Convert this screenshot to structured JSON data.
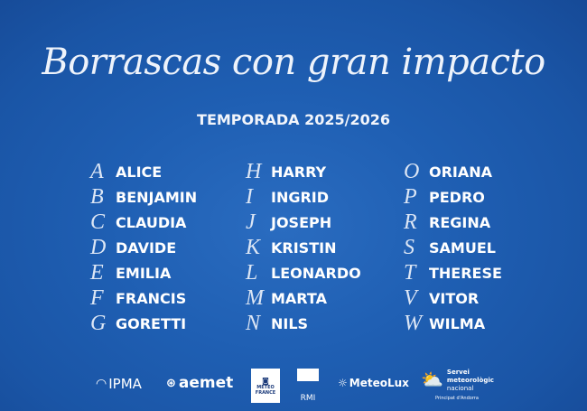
{
  "title": "Borrascas con gran impacto",
  "subtitle": "TEMPORADA 2025/2026",
  "columns": [
    [
      {
        "letter": "A",
        "name": "ALICE"
      },
      {
        "letter": "B",
        "name": "BENJAMIN"
      },
      {
        "letter": "C",
        "name": "CLAUDIA"
      },
      {
        "letter": "D",
        "name": "DAVIDE"
      },
      {
        "letter": "E",
        "name": "EMILIA"
      },
      {
        "letter": "F",
        "name": "FRANCIS"
      },
      {
        "letter": "G",
        "name": "GORETTI"
      }
    ],
    [
      {
        "letter": "H",
        "name": "HARRY"
      },
      {
        "letter": "I",
        "name": "INGRID"
      },
      {
        "letter": "J",
        "name": "JOSEPH"
      },
      {
        "letter": "K",
        "name": "KRISTIN"
      },
      {
        "letter": "L",
        "name": "LEONARDO"
      },
      {
        "letter": "M",
        "name": "MARTA"
      },
      {
        "letter": "N",
        "name": "NILS"
      }
    ],
    [
      {
        "letter": "O",
        "name": "ORIANA"
      },
      {
        "letter": "P",
        "name": "PEDRO"
      },
      {
        "letter": "R",
        "name": "REGINA"
      },
      {
        "letter": "S",
        "name": "SAMUEL"
      },
      {
        "letter": "T",
        "name": "THERESE"
      },
      {
        "letter": "V",
        "name": "VITOR"
      },
      {
        "letter": "W",
        "name": "WILMA"
      }
    ]
  ],
  "logos": {
    "ipma": "IPMA",
    "aemet": "aemet",
    "meteofrance": "METEO FRANCE",
    "rmi": "RMI",
    "meteolux": "MeteoLux",
    "andorra_line1": "Servei",
    "andorra_line2": "meteorològic",
    "andorra_line3": "nacional",
    "andorra_sub": "Principat d'Andorra"
  },
  "colors": {
    "background": "#1f5fb3",
    "text": "#ffffff"
  }
}
